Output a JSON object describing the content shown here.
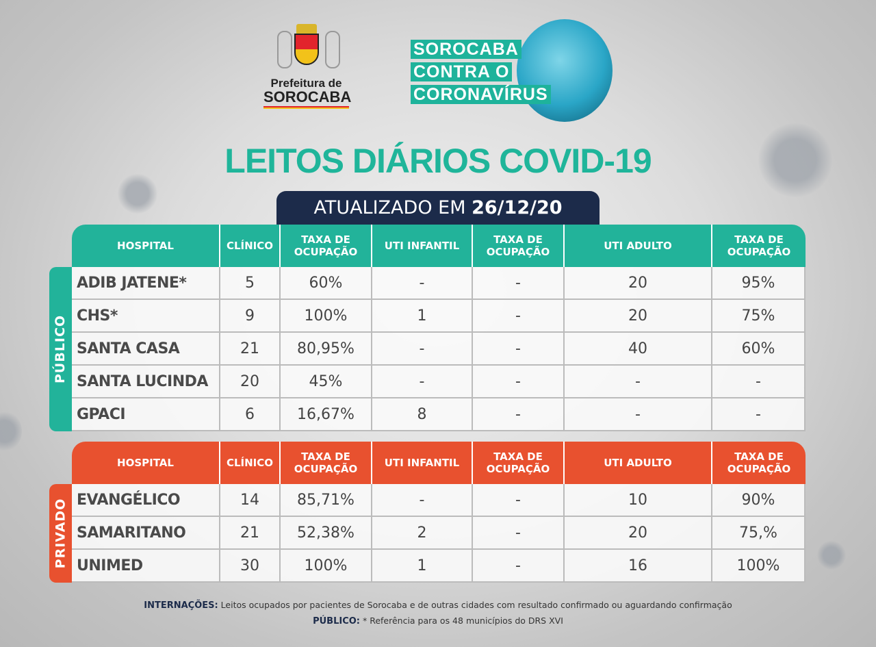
{
  "logo": {
    "line1": "Prefeitura de",
    "line2": "SOROCABA"
  },
  "campaign": [
    "SOROCABA",
    "CONTRA O",
    "CORONAVÍRUS"
  ],
  "title": "LEITOS DIÁRIOS COVID-19",
  "updated": {
    "prefix": "ATUALIZADO EM ",
    "date": "26/12/20"
  },
  "colors": {
    "public": "#22b39a",
    "private": "#e8512f",
    "badge": "#1c2b4a"
  },
  "columns": [
    "HOSPITAL",
    "CLÍNICO",
    "TAXA DE OCUPAÇÃO",
    "UTI INFANTIL",
    "TAXA DE OCUPAÇÃO",
    "UTI ADULTO",
    "TAXA DE OCUPAÇÃO"
  ],
  "sections": [
    {
      "label": "PÚBLICO",
      "rows": [
        [
          "ADIB JATENE*",
          "5",
          "60%",
          "-",
          "-",
          "20",
          "95%"
        ],
        [
          "CHS*",
          "9",
          "100%",
          "1",
          "-",
          "20",
          "75%"
        ],
        [
          "SANTA CASA",
          "21",
          "80,95%",
          "-",
          "-",
          "40",
          "60%"
        ],
        [
          "SANTA LUCINDA",
          "20",
          "45%",
          "-",
          "-",
          "-",
          "-"
        ],
        [
          "GPACI",
          "6",
          "16,67%",
          "8",
          "-",
          "-",
          "-"
        ]
      ]
    },
    {
      "label": "PRIVADO",
      "rows": [
        [
          "EVANGÉLICO",
          "14",
          "85,71%",
          "-",
          "-",
          "10",
          "90%"
        ],
        [
          "SAMARITANO",
          "21",
          "52,38%",
          "2",
          "-",
          "20",
          "75,%"
        ],
        [
          "UNIMED",
          "30",
          "100%",
          "1",
          "-",
          "16",
          "100%"
        ]
      ]
    }
  ],
  "footer": {
    "line1_label": "INTERNAÇÕES:",
    "line1_text": " Leitos ocupados por pacientes de Sorocaba e de outras cidades com resultado confirmado ou aguardando confirmação",
    "line2_label": "PÚBLICO:",
    "line2_text": " * Referência para os 48 municípios do DRS XVI"
  }
}
